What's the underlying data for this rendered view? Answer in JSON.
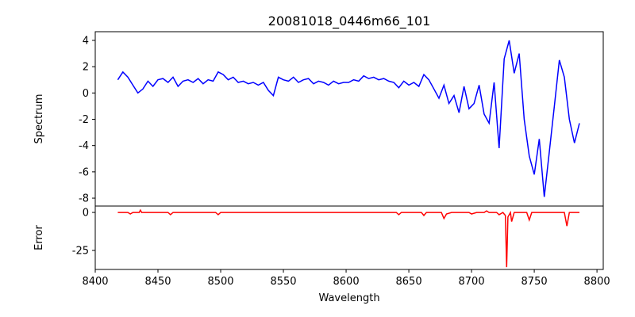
{
  "chart_data": [
    {
      "type": "line",
      "title": "20081018_0446m66_101",
      "xlabel": "",
      "ylabel": "Spectrum",
      "xlim": [
        8400,
        8805
      ],
      "ylim": [
        -8.6,
        4.66
      ],
      "yticks": [
        4,
        2,
        0,
        -2,
        -4,
        -6,
        -8
      ],
      "color": "#0000ff",
      "x_range": [
        8418,
        8786
      ],
      "values": [
        1.0,
        1.6,
        1.2,
        0.6,
        0.0,
        0.3,
        0.9,
        0.5,
        1.0,
        1.1,
        0.8,
        1.2,
        0.5,
        0.9,
        1.0,
        0.8,
        1.1,
        0.7,
        1.0,
        0.9,
        1.6,
        1.4,
        1.0,
        1.2,
        0.8,
        0.9,
        0.7,
        0.8,
        0.6,
        0.8,
        0.2,
        -0.2,
        1.2,
        1.0,
        0.9,
        1.2,
        0.8,
        1.0,
        1.1,
        0.7,
        0.9,
        0.8,
        0.6,
        0.9,
        0.7,
        0.8,
        0.8,
        1.0,
        0.9,
        1.3,
        1.1,
        1.2,
        1.0,
        1.1,
        0.9,
        0.8,
        0.4,
        0.9,
        0.6,
        0.8,
        0.5,
        1.4,
        1.0,
        0.3,
        -0.4,
        0.6,
        -0.8,
        -0.2,
        -1.5,
        0.5,
        -1.2,
        -0.8,
        0.6,
        -1.6,
        -2.3,
        0.8,
        -4.2,
        2.6,
        4.0,
        1.5,
        3.0,
        -2.0,
        -4.8,
        -6.2,
        -3.5,
        -7.9,
        -4.5,
        -1.0,
        2.5,
        1.2,
        -2.0,
        -3.8,
        -2.3
      ]
    },
    {
      "type": "line",
      "xlabel": "Wavelength",
      "ylabel": "Error",
      "xlim": [
        8400,
        8805
      ],
      "ylim": [
        -37.5,
        4.2
      ],
      "yticks": [
        0,
        -25
      ],
      "xticks": [
        8400,
        8450,
        8500,
        8550,
        8600,
        8650,
        8700,
        8750,
        8800
      ],
      "color": "#ff0000",
      "points": [
        [
          8418,
          0
        ],
        [
          8426,
          0
        ],
        [
          8428,
          -1
        ],
        [
          8430,
          0
        ],
        [
          8435,
          0
        ],
        [
          8436,
          1.5
        ],
        [
          8437,
          0
        ],
        [
          8458,
          0
        ],
        [
          8460,
          -1.5
        ],
        [
          8462,
          0
        ],
        [
          8496,
          0
        ],
        [
          8498,
          -1.5
        ],
        [
          8500,
          0
        ],
        [
          8640,
          0
        ],
        [
          8642,
          -1.5
        ],
        [
          8644,
          0
        ],
        [
          8660,
          0
        ],
        [
          8662,
          -2
        ],
        [
          8664,
          0
        ],
        [
          8676,
          0
        ],
        [
          8678,
          -4
        ],
        [
          8680,
          -1
        ],
        [
          8684,
          0
        ],
        [
          8698,
          0
        ],
        [
          8700,
          -1
        ],
        [
          8704,
          0
        ],
        [
          8710,
          0
        ],
        [
          8712,
          1
        ],
        [
          8714,
          0
        ],
        [
          8720,
          0
        ],
        [
          8722,
          -1.5
        ],
        [
          8725,
          0
        ],
        [
          8727,
          -2
        ],
        [
          8728,
          -36
        ],
        [
          8729,
          -3
        ],
        [
          8731,
          0
        ],
        [
          8732,
          -6
        ],
        [
          8734,
          0
        ],
        [
          8744,
          0
        ],
        [
          8746,
          -5
        ],
        [
          8748,
          0
        ],
        [
          8774,
          0
        ],
        [
          8776,
          -9
        ],
        [
          8778,
          0
        ],
        [
          8786,
          0
        ]
      ]
    }
  ]
}
